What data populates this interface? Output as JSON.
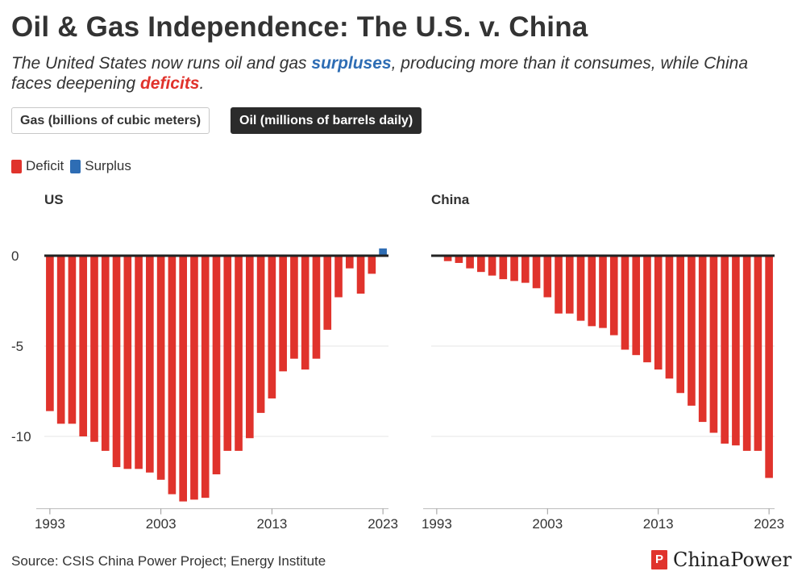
{
  "header": {
    "title": "Oil & Gas Independence: The U.S. v. China",
    "subtitle_before": "The United States now runs oil and gas ",
    "subtitle_surplus": "surpluses",
    "subtitle_middle": ", producing more than it consumes, while China faces deepening ",
    "subtitle_deficit": "deficits",
    "subtitle_after": "."
  },
  "toggles": {
    "gas_label": "Gas (billions of cubic meters)",
    "oil_label": "Oil (millions of barrels daily)",
    "active": "oil"
  },
  "legend": {
    "deficit_label": "Deficit",
    "surplus_label": "Surplus"
  },
  "footer": {
    "source": "Source: CSIS China Power Project; Energy Institute",
    "logo_text": "ChinaPower"
  },
  "colors": {
    "deficit": "#e0332c",
    "surplus": "#2e6db4",
    "zero_line": "#222222",
    "grid": "#e6e6e6"
  },
  "chart_data": [
    {
      "type": "bar",
      "title": "US",
      "xlabel": "",
      "ylabel": "",
      "x": [
        1993,
        1994,
        1995,
        1996,
        1997,
        1998,
        1999,
        2000,
        2001,
        2002,
        2003,
        2004,
        2005,
        2006,
        2007,
        2008,
        2009,
        2010,
        2011,
        2012,
        2013,
        2014,
        2015,
        2016,
        2017,
        2018,
        2019,
        2020,
        2021,
        2022,
        2023
      ],
      "values": [
        -8.6,
        -9.3,
        -9.3,
        -10.0,
        -10.3,
        -10.8,
        -11.7,
        -11.8,
        -11.8,
        -12.0,
        -12.4,
        -13.2,
        -13.6,
        -13.5,
        -13.4,
        -12.1,
        -10.8,
        -10.8,
        -10.1,
        -8.7,
        -7.9,
        -6.4,
        -5.7,
        -6.3,
        -5.7,
        -4.1,
        -2.3,
        -0.7,
        -2.1,
        -1.0,
        0.4
      ],
      "xticks": [
        "1993",
        "2003",
        "2013",
        "2023"
      ],
      "yticks": [
        "0",
        "-5",
        "-10"
      ],
      "ylim": [
        -14,
        2
      ]
    },
    {
      "type": "bar",
      "title": "China",
      "xlabel": "",
      "ylabel": "",
      "x": [
        1993,
        1994,
        1995,
        1996,
        1997,
        1998,
        1999,
        2000,
        2001,
        2002,
        2003,
        2004,
        2005,
        2006,
        2007,
        2008,
        2009,
        2010,
        2011,
        2012,
        2013,
        2014,
        2015,
        2016,
        2017,
        2018,
        2019,
        2020,
        2021,
        2022,
        2023
      ],
      "values": [
        -0.05,
        -0.3,
        -0.4,
        -0.7,
        -0.9,
        -1.1,
        -1.3,
        -1.4,
        -1.5,
        -1.8,
        -2.3,
        -3.2,
        -3.2,
        -3.6,
        -3.9,
        -4.0,
        -4.4,
        -5.2,
        -5.5,
        -5.9,
        -6.3,
        -6.8,
        -7.6,
        -8.3,
        -9.2,
        -9.8,
        -10.4,
        -10.5,
        -10.8,
        -10.8,
        -12.3
      ],
      "xticks": [
        "1993",
        "2003",
        "2013",
        "2023"
      ],
      "yticks": [
        "0",
        "-5",
        "-10"
      ],
      "ylim": [
        -14,
        2
      ]
    }
  ]
}
